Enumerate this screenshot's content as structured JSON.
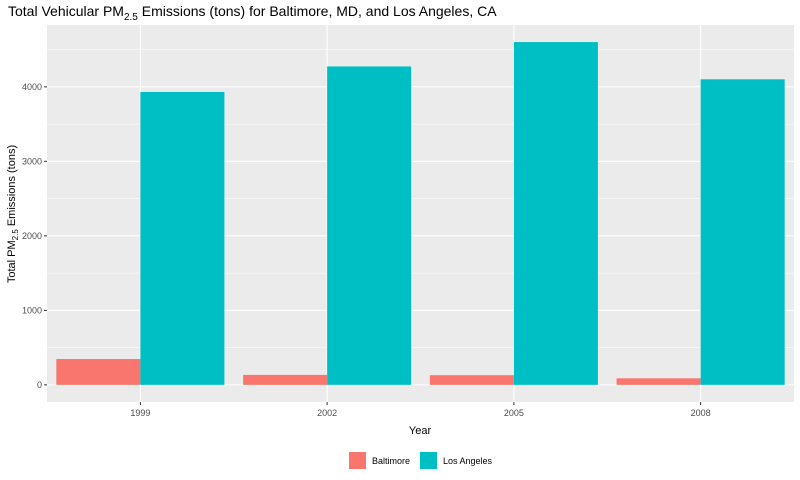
{
  "chart_data": {
    "type": "bar",
    "title": {
      "prefix": "Total Vehicular PM",
      "subscript": "2.5",
      "suffix": " Emissions (tons) for Baltimore, MD, and Los Angeles, CA"
    },
    "xlabel": "Year",
    "ylabel": {
      "prefix": "Total PM",
      "subscript": "2.5",
      "suffix": " Emissions (tons)"
    },
    "categories": [
      "1999",
      "2002",
      "2005",
      "2008"
    ],
    "series": [
      {
        "name": "Baltimore",
        "color": "#F8766D",
        "values": [
          347,
          134,
          130,
          88
        ]
      },
      {
        "name": "Los Angeles",
        "color": "#00BFC4",
        "values": [
          3931,
          4274,
          4601,
          4101
        ]
      }
    ],
    "yticks": [
      0,
      1000,
      2000,
      3000,
      4000
    ],
    "ylim": [
      -230,
      4830
    ],
    "grid": true,
    "legend_position": "bottom",
    "panel_background": "#EBEBEB",
    "grid_color": "#FFFFFF"
  }
}
